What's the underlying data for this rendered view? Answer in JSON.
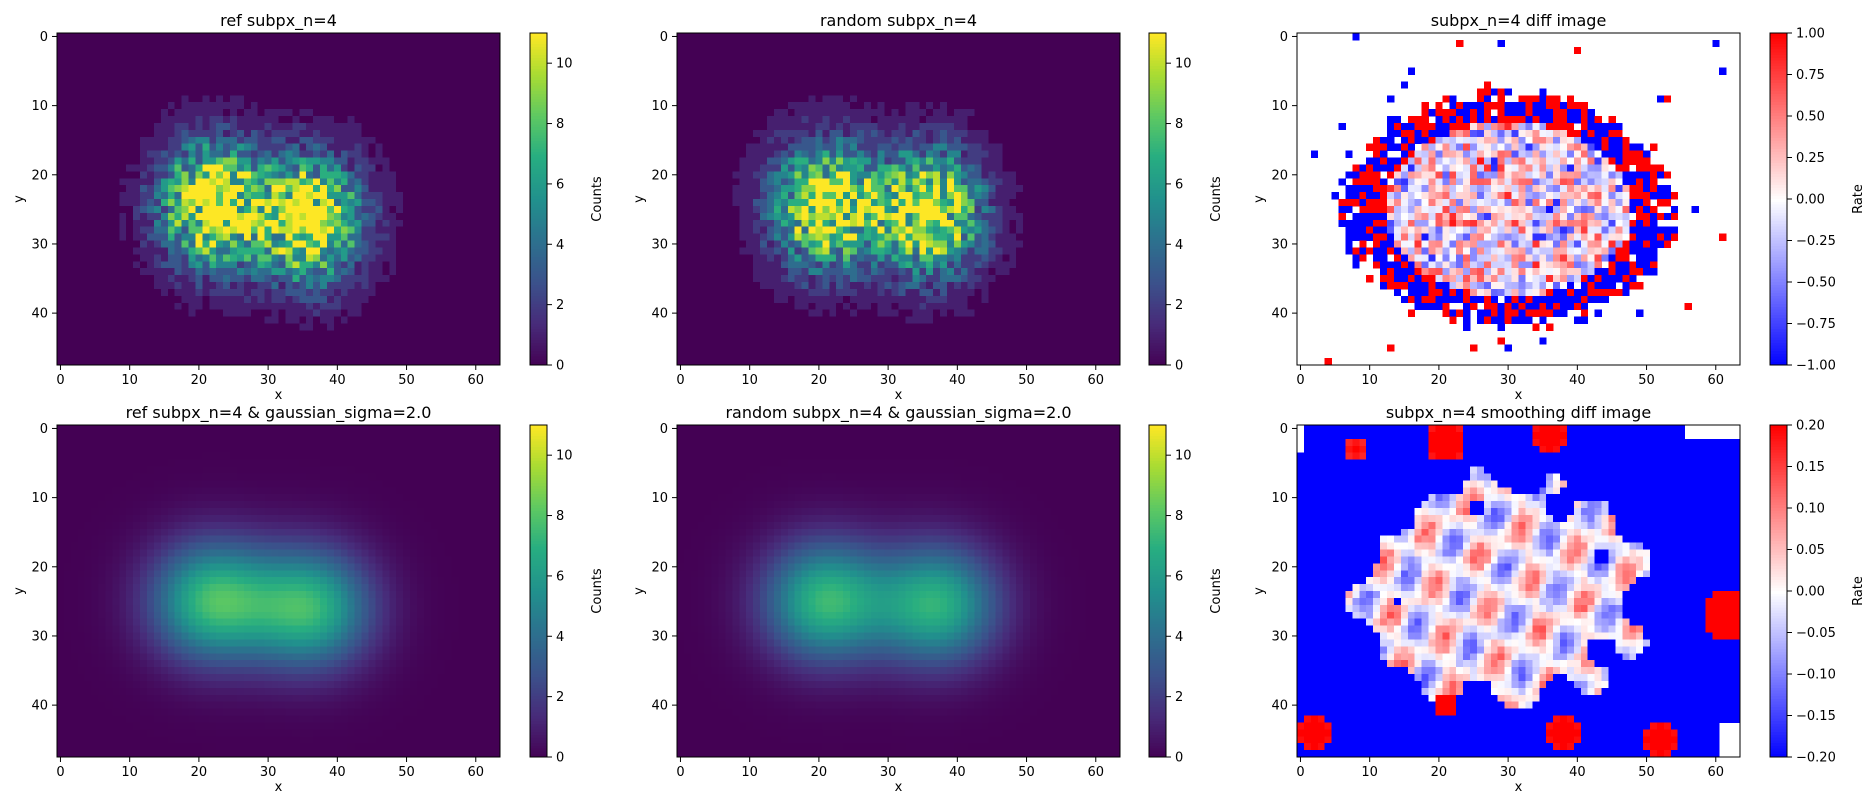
{
  "chart_data": [
    {
      "type": "heatmap",
      "id": "p1",
      "title": "ref subpx_n=4",
      "xlabel": "x",
      "ylabel": "y",
      "xlim": [
        -0.5,
        63.5
      ],
      "ylim": [
        47.5,
        -0.5
      ],
      "xticks": [
        "0",
        "10",
        "20",
        "30",
        "40",
        "50",
        "60"
      ],
      "yticks": [
        "0",
        "10",
        "20",
        "30",
        "40"
      ],
      "xtick_values": [
        0,
        10,
        20,
        30,
        40,
        50,
        60
      ],
      "ytick_values": [
        0,
        10,
        20,
        30,
        40
      ],
      "colormap": "viridis",
      "colorbar": {
        "label": "Counts",
        "range": [
          0,
          11
        ],
        "ticks": [
          "0",
          "2",
          "4",
          "6",
          "8",
          "10"
        ],
        "tick_values": [
          0,
          2,
          4,
          6,
          8,
          10
        ]
      },
      "pattern": "noisy",
      "blobs": [
        [
          22,
          24.5,
          10
        ],
        [
          36,
          26.5,
          10
        ]
      ]
    },
    {
      "type": "heatmap",
      "id": "p2",
      "title": "random subpx_n=4",
      "xlabel": "x",
      "ylabel": "y",
      "xlim": [
        -0.5,
        63.5
      ],
      "ylim": [
        47.5,
        -0.5
      ],
      "xticks": [
        "0",
        "10",
        "20",
        "30",
        "40",
        "50",
        "60"
      ],
      "yticks": [
        "0",
        "10",
        "20",
        "30",
        "40"
      ],
      "xtick_values": [
        0,
        10,
        20,
        30,
        40,
        50,
        60
      ],
      "ytick_values": [
        0,
        10,
        20,
        30,
        40
      ],
      "colormap": "viridis",
      "colorbar": {
        "label": "Counts",
        "range": [
          0,
          11
        ],
        "ticks": [
          "0",
          "2",
          "4",
          "6",
          "8",
          "10"
        ],
        "tick_values": [
          0,
          2,
          4,
          6,
          8,
          10
        ]
      },
      "pattern": "noisy",
      "blobs": [
        [
          21,
          24.5,
          10
        ],
        [
          36,
          25.5,
          10
        ]
      ]
    },
    {
      "type": "heatmap",
      "id": "p3",
      "title": "subpx_n=4 diff image",
      "xlabel": "x",
      "ylabel": "y",
      "xlim": [
        -0.5,
        63.5
      ],
      "ylim": [
        47.5,
        -0.5
      ],
      "xticks": [
        "0",
        "10",
        "20",
        "30",
        "40",
        "50",
        "60"
      ],
      "yticks": [
        "0",
        "10",
        "20",
        "30",
        "40"
      ],
      "xtick_values": [
        0,
        10,
        20,
        30,
        40,
        50,
        60
      ],
      "ytick_values": [
        0,
        10,
        20,
        30,
        40
      ],
      "colormap": "bwr",
      "colorbar": {
        "label": "Rate",
        "range": [
          -1.0,
          1.0
        ],
        "ticks": [
          "−1.00",
          "−0.75",
          "−0.50",
          "−0.25",
          "0.00",
          "0.25",
          "0.50",
          "0.75",
          "1.00"
        ],
        "tick_values": [
          -1,
          -0.75,
          -0.5,
          -0.25,
          0,
          0.25,
          0.5,
          0.75,
          1
        ]
      },
      "pattern": "diff"
    },
    {
      "type": "heatmap",
      "id": "p4",
      "title": "ref subpx_n=4 & gaussian_sigma=2.0",
      "xlabel": "x",
      "ylabel": "y",
      "xlim": [
        -0.5,
        63.5
      ],
      "ylim": [
        47.5,
        -0.5
      ],
      "xticks": [
        "0",
        "10",
        "20",
        "30",
        "40",
        "50",
        "60"
      ],
      "yticks": [
        "0",
        "10",
        "20",
        "30",
        "40"
      ],
      "xtick_values": [
        0,
        10,
        20,
        30,
        40,
        50,
        60
      ],
      "ytick_values": [
        0,
        10,
        20,
        30,
        40
      ],
      "colormap": "viridis",
      "colorbar": {
        "label": "Counts",
        "range": [
          0,
          11
        ],
        "ticks": [
          "0",
          "2",
          "4",
          "6",
          "8",
          "10"
        ],
        "tick_values": [
          0,
          2,
          4,
          6,
          8,
          10
        ]
      },
      "pattern": "smooth",
      "blobs": [
        [
          22,
          25,
          7.5
        ],
        [
          36,
          26,
          7.2
        ]
      ]
    },
    {
      "type": "heatmap",
      "id": "p5",
      "title": "random subpx_n=4 & gaussian_sigma=2.0",
      "xlabel": "x",
      "ylabel": "y",
      "xlim": [
        -0.5,
        63.5
      ],
      "ylim": [
        47.5,
        -0.5
      ],
      "xticks": [
        "0",
        "10",
        "20",
        "30",
        "40",
        "50",
        "60"
      ],
      "yticks": [
        "0",
        "10",
        "20",
        "30",
        "40"
      ],
      "xtick_values": [
        0,
        10,
        20,
        30,
        40,
        50,
        60
      ],
      "ytick_values": [
        0,
        10,
        20,
        30,
        40
      ],
      "colormap": "viridis",
      "colorbar": {
        "label": "Counts",
        "range": [
          0,
          11
        ],
        "ticks": [
          "0",
          "2",
          "4",
          "6",
          "8",
          "10"
        ],
        "tick_values": [
          0,
          2,
          4,
          6,
          8,
          10
        ]
      },
      "pattern": "smooth",
      "blobs": [
        [
          21,
          25,
          7.3
        ],
        [
          37,
          25.5,
          7.0
        ]
      ]
    },
    {
      "type": "heatmap",
      "id": "p6",
      "title": "subpx_n=4 smoothing diff image",
      "xlabel": "x",
      "ylabel": "y",
      "xlim": [
        -0.5,
        63.5
      ],
      "ylim": [
        47.5,
        -0.5
      ],
      "xticks": [
        "0",
        "10",
        "20",
        "30",
        "40",
        "50",
        "60"
      ],
      "yticks": [
        "0",
        "10",
        "20",
        "30",
        "40"
      ],
      "xtick_values": [
        0,
        10,
        20,
        30,
        40,
        50,
        60
      ],
      "ytick_values": [
        0,
        10,
        20,
        30,
        40
      ],
      "colormap": "bwr",
      "colorbar": {
        "label": "Rate",
        "range": [
          -0.2,
          0.2
        ],
        "ticks": [
          "−0.20",
          "−0.15",
          "−0.10",
          "−0.05",
          "0.00",
          "0.05",
          "0.10",
          "0.15",
          "0.20"
        ],
        "tick_values": [
          -0.2,
          -0.15,
          -0.1,
          -0.05,
          0,
          0.05,
          0.1,
          0.15,
          0.2
        ]
      },
      "pattern": "smoothdiff",
      "red_patches": [
        [
          21,
          2,
          3,
          0.25
        ],
        [
          36,
          1,
          2.5,
          0.25
        ],
        [
          62,
          27,
          4,
          0.3
        ],
        [
          2,
          44,
          2.5,
          0.25
        ],
        [
          21,
          40,
          2,
          0.25
        ],
        [
          38,
          44,
          2.5,
          0.25
        ],
        [
          52,
          45,
          2.5,
          0.25
        ],
        [
          8,
          3,
          2,
          0.2
        ]
      ]
    }
  ]
}
